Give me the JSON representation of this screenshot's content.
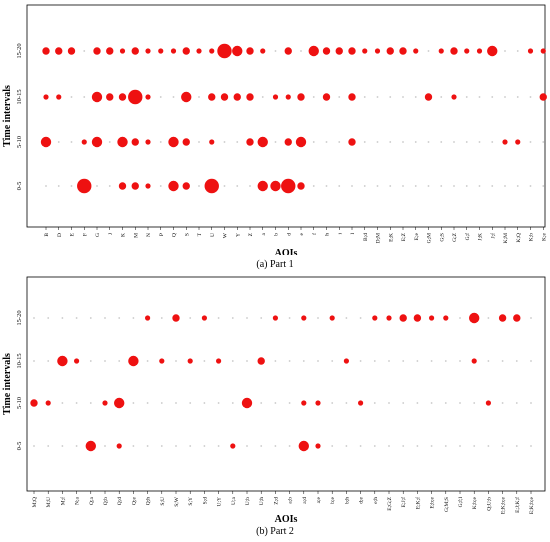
{
  "chart_data": [
    {
      "type": "scatter",
      "subtype": "bubble",
      "xlabel": "AOIs",
      "ylabel": "Time intervals",
      "caption": "(a) Part 1",
      "grid": false,
      "categories": [
        "B",
        "D",
        "E",
        "F",
        "G",
        "J",
        "K",
        "M",
        "N",
        "P",
        "Q",
        "S",
        "T",
        "U",
        "W",
        "Y",
        "Z",
        "a",
        "b",
        "d",
        "e",
        "f",
        "h",
        "i",
        "l",
        "B;d",
        "D;M",
        "E;K",
        "E;Z",
        "E;e",
        "G;M",
        "G;S",
        "G;Z",
        "G;f",
        "J;K",
        "J;f",
        "K;M",
        "K;Q",
        "K;b",
        "K;e"
      ],
      "y_categories": [
        "0-5",
        "5-10",
        "10-15",
        "15-20"
      ],
      "size_unit": "relative bubble size",
      "points": [
        {
          "x": "B",
          "y": "15-20",
          "size": 2
        },
        {
          "x": "D",
          "y": "15-20",
          "size": 2
        },
        {
          "x": "E",
          "y": "15-20",
          "size": 2
        },
        {
          "x": "G",
          "y": "15-20",
          "size": 2
        },
        {
          "x": "J",
          "y": "15-20",
          "size": 2
        },
        {
          "x": "K",
          "y": "15-20",
          "size": 1
        },
        {
          "x": "M",
          "y": "15-20",
          "size": 2
        },
        {
          "x": "N",
          "y": "15-20",
          "size": 1
        },
        {
          "x": "P",
          "y": "15-20",
          "size": 1
        },
        {
          "x": "Q",
          "y": "15-20",
          "size": 1
        },
        {
          "x": "S",
          "y": "15-20",
          "size": 2
        },
        {
          "x": "T",
          "y": "15-20",
          "size": 1
        },
        {
          "x": "U",
          "y": "15-20",
          "size": 1
        },
        {
          "x": "W",
          "y": "15-20",
          "size": 4
        },
        {
          "x": "Y",
          "y": "15-20",
          "size": 3
        },
        {
          "x": "Z",
          "y": "15-20",
          "size": 2
        },
        {
          "x": "a",
          "y": "15-20",
          "size": 1
        },
        {
          "x": "d",
          "y": "15-20",
          "size": 2
        },
        {
          "x": "f",
          "y": "15-20",
          "size": 3
        },
        {
          "x": "h",
          "y": "15-20",
          "size": 2
        },
        {
          "x": "i",
          "y": "15-20",
          "size": 2
        },
        {
          "x": "l",
          "y": "15-20",
          "size": 2
        },
        {
          "x": "B;d",
          "y": "15-20",
          "size": 1
        },
        {
          "x": "D;M",
          "y": "15-20",
          "size": 1
        },
        {
          "x": "E;K",
          "y": "15-20",
          "size": 2
        },
        {
          "x": "E;Z",
          "y": "15-20",
          "size": 2
        },
        {
          "x": "E;e",
          "y": "15-20",
          "size": 1
        },
        {
          "x": "G;S",
          "y": "15-20",
          "size": 1
        },
        {
          "x": "G;Z",
          "y": "15-20",
          "size": 2
        },
        {
          "x": "G;f",
          "y": "15-20",
          "size": 1
        },
        {
          "x": "J;K",
          "y": "15-20",
          "size": 1
        },
        {
          "x": "J;f",
          "y": "15-20",
          "size": 3
        },
        {
          "x": "K;b",
          "y": "15-20",
          "size": 1
        },
        {
          "x": "K;e",
          "y": "15-20",
          "size": 1
        },
        {
          "x": "B",
          "y": "10-15",
          "size": 1
        },
        {
          "x": "D",
          "y": "10-15",
          "size": 1
        },
        {
          "x": "G",
          "y": "10-15",
          "size": 3
        },
        {
          "x": "J",
          "y": "10-15",
          "size": 2
        },
        {
          "x": "K",
          "y": "10-15",
          "size": 2
        },
        {
          "x": "M",
          "y": "10-15",
          "size": 4
        },
        {
          "x": "N",
          "y": "10-15",
          "size": 1
        },
        {
          "x": "S",
          "y": "10-15",
          "size": 3
        },
        {
          "x": "U",
          "y": "10-15",
          "size": 2
        },
        {
          "x": "W",
          "y": "10-15",
          "size": 2
        },
        {
          "x": "Y",
          "y": "10-15",
          "size": 2
        },
        {
          "x": "Z",
          "y": "10-15",
          "size": 2
        },
        {
          "x": "b",
          "y": "10-15",
          "size": 1
        },
        {
          "x": "d",
          "y": "10-15",
          "size": 1
        },
        {
          "x": "e",
          "y": "10-15",
          "size": 2
        },
        {
          "x": "h",
          "y": "10-15",
          "size": 2
        },
        {
          "x": "l",
          "y": "10-15",
          "size": 2
        },
        {
          "x": "G;M",
          "y": "10-15",
          "size": 2
        },
        {
          "x": "G;Z",
          "y": "10-15",
          "size": 1
        },
        {
          "x": "K;e",
          "y": "10-15",
          "size": 2
        },
        {
          "x": "B",
          "y": "5-10",
          "size": 3
        },
        {
          "x": "F",
          "y": "5-10",
          "size": 1
        },
        {
          "x": "G",
          "y": "5-10",
          "size": 3
        },
        {
          "x": "K",
          "y": "5-10",
          "size": 3
        },
        {
          "x": "M",
          "y": "5-10",
          "size": 2
        },
        {
          "x": "N",
          "y": "5-10",
          "size": 1
        },
        {
          "x": "Q",
          "y": "5-10",
          "size": 3
        },
        {
          "x": "S",
          "y": "5-10",
          "size": 2
        },
        {
          "x": "U",
          "y": "5-10",
          "size": 1
        },
        {
          "x": "Z",
          "y": "5-10",
          "size": 2
        },
        {
          "x": "a",
          "y": "5-10",
          "size": 3
        },
        {
          "x": "d",
          "y": "5-10",
          "size": 2
        },
        {
          "x": "e",
          "y": "5-10",
          "size": 3
        },
        {
          "x": "l",
          "y": "5-10",
          "size": 2
        },
        {
          "x": "K;M",
          "y": "5-10",
          "size": 1
        },
        {
          "x": "K;Q",
          "y": "5-10",
          "size": 1
        },
        {
          "x": "F",
          "y": "0-5",
          "size": 4
        },
        {
          "x": "K",
          "y": "0-5",
          "size": 2
        },
        {
          "x": "M",
          "y": "0-5",
          "size": 2
        },
        {
          "x": "N",
          "y": "0-5",
          "size": 1
        },
        {
          "x": "Q",
          "y": "0-5",
          "size": 3
        },
        {
          "x": "S",
          "y": "0-5",
          "size": 2
        },
        {
          "x": "U",
          "y": "0-5",
          "size": 4
        },
        {
          "x": "a",
          "y": "0-5",
          "size": 3
        },
        {
          "x": "b",
          "y": "0-5",
          "size": 3
        },
        {
          "x": "d",
          "y": "0-5",
          "size": 4
        },
        {
          "x": "e",
          "y": "0-5",
          "size": 2
        }
      ]
    },
    {
      "type": "scatter",
      "subtype": "bubble",
      "xlabel": "AOIs",
      "ylabel": "Time intervals",
      "caption": "(b) Part 2",
      "grid": false,
      "categories": [
        "M;Q",
        "M;U",
        "M;f",
        "N;a",
        "Q;a",
        "Q;b",
        "Q;d",
        "Q;e",
        "Q;h",
        "S;U",
        "S;W",
        "S;Y",
        "S;d",
        "U;Y",
        "U;a",
        "U;b",
        "U;h",
        "Z;d",
        "a;b",
        "a;d",
        "a;e",
        "b;e",
        "b;h",
        "d;e",
        "e;h",
        "E;G;Z",
        "E;J;f",
        "E;K;f",
        "E;b;e",
        "G;M;S",
        "G;f;l",
        "K;b;e",
        "Q;U;b",
        "E;K;b;e",
        "E;J;K;f",
        "E;K;b;e"
      ],
      "y_categories": [
        "0-5",
        "5-10",
        "10-15",
        "15-20"
      ],
      "size_unit": "relative bubble size",
      "points": [
        {
          "x": "Q;h",
          "y": "15-20",
          "size": 1
        },
        {
          "x": "S;W",
          "y": "15-20",
          "size": 2
        },
        {
          "x": "S;d",
          "y": "15-20",
          "size": 1
        },
        {
          "x": "Z;d",
          "y": "15-20",
          "size": 1
        },
        {
          "x": "a;d",
          "y": "15-20",
          "size": 1
        },
        {
          "x": "b;e",
          "y": "15-20",
          "size": 1
        },
        {
          "x": "e;h",
          "y": "15-20",
          "size": 1
        },
        {
          "x": "E;G;Z",
          "y": "15-20",
          "size": 1
        },
        {
          "x": "E;J;f",
          "y": "15-20",
          "size": 2
        },
        {
          "x": "E;K;f",
          "y": "15-20",
          "size": 2
        },
        {
          "x": "E;b;e",
          "y": "15-20",
          "size": 1
        },
        {
          "x": "G;M;S",
          "y": "15-20",
          "size": 1
        },
        {
          "x": "K;b;e",
          "y": "15-20",
          "size": 3
        },
        {
          "x": "E;K;b;e",
          "y": "15-20",
          "size": 1
        },
        {
          "x": "E;J;K;f",
          "y": "15-20",
          "size": 2
        },
        {
          "x": "E;K;b;e",
          "y": "15-20",
          "size": 2
        },
        {
          "x": "M;f",
          "y": "10-15",
          "size": 3
        },
        {
          "x": "N;a",
          "y": "10-15",
          "size": 1
        },
        {
          "x": "Q;e",
          "y": "10-15",
          "size": 3
        },
        {
          "x": "S;U",
          "y": "10-15",
          "size": 1
        },
        {
          "x": "S;Y",
          "y": "10-15",
          "size": 1
        },
        {
          "x": "U;Y",
          "y": "10-15",
          "size": 1
        },
        {
          "x": "U;h",
          "y": "10-15",
          "size": 2
        },
        {
          "x": "b;h",
          "y": "10-15",
          "size": 1
        },
        {
          "x": "K;b;e",
          "y": "10-15",
          "size": 1
        },
        {
          "x": "M;Q",
          "y": "5-10",
          "size": 2
        },
        {
          "x": "M;U",
          "y": "5-10",
          "size": 1
        },
        {
          "x": "Q;b",
          "y": "5-10",
          "size": 1
        },
        {
          "x": "Q;d",
          "y": "5-10",
          "size": 3
        },
        {
          "x": "U;b",
          "y": "5-10",
          "size": 3
        },
        {
          "x": "a;d",
          "y": "5-10",
          "size": 1
        },
        {
          "x": "a;e",
          "y": "5-10",
          "size": 1
        },
        {
          "x": "d;e",
          "y": "5-10",
          "size": 1
        },
        {
          "x": "Q;U;b",
          "y": "5-10",
          "size": 1
        },
        {
          "x": "Q;a",
          "y": "0-5",
          "size": 3
        },
        {
          "x": "Q;d",
          "y": "0-5",
          "size": 1
        },
        {
          "x": "U;a",
          "y": "0-5",
          "size": 1
        },
        {
          "x": "a;d",
          "y": "0-5",
          "size": 3
        },
        {
          "x": "a;e",
          "y": "0-5",
          "size": 1
        }
      ]
    }
  ],
  "colors": {
    "bubble": "#ee1111",
    "dot": "#c8c8c8"
  }
}
